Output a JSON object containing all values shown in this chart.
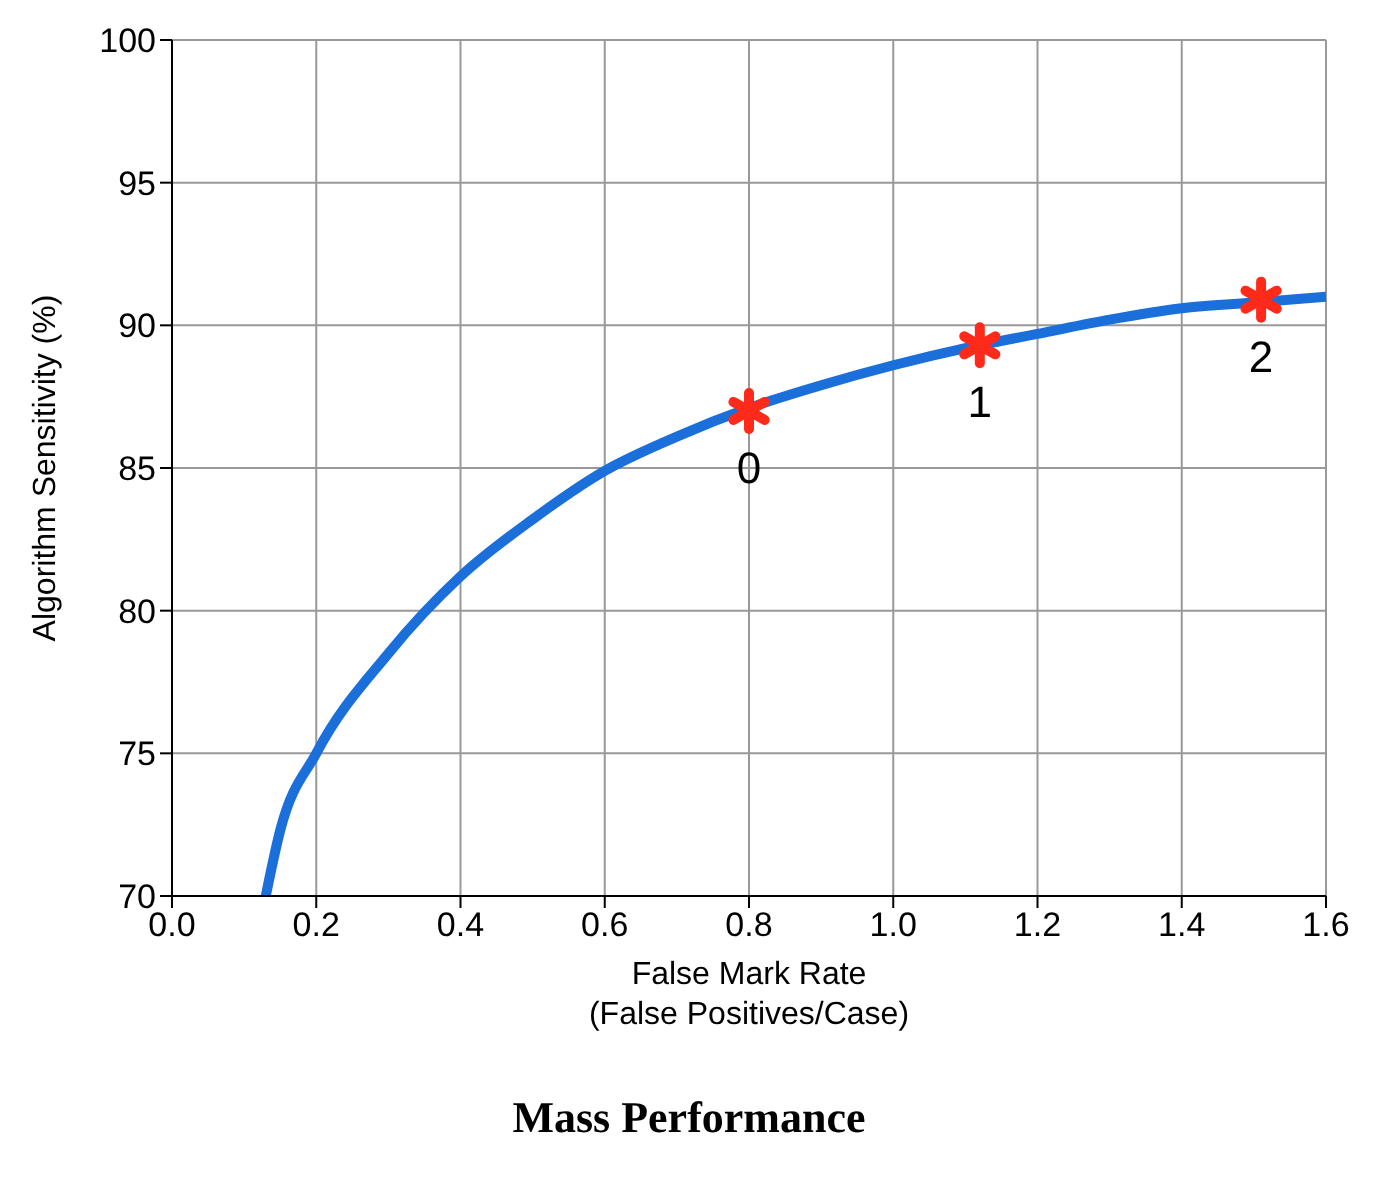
{
  "chart_data": {
    "type": "line",
    "title": "Mass Performance",
    "xlabel": "False Mark Rate\n(False Positives/Case)",
    "ylabel": "Algorithm Sensitivity (%)",
    "xlim": [
      0,
      1.6
    ],
    "xticks": [
      {
        "value": 0,
        "label": "0.0"
      },
      0.2,
      0.4,
      0.6,
      0.8,
      {
        "value": 1,
        "label": "1.0"
      },
      1.2,
      1.4,
      1.6
    ],
    "ylim": [
      70,
      100
    ],
    "yticks": [
      70,
      75,
      80,
      85,
      90,
      95,
      100
    ],
    "grid": true,
    "legend": false,
    "annotations": [
      {
        "text": "0",
        "x": 0.8,
        "y": 87
      },
      {
        "text": "1",
        "x": 1.12,
        "y": 89.3
      },
      {
        "text": "2",
        "x": 1.51,
        "y": 90.9
      }
    ],
    "series": [
      {
        "color": "#1a6fdb",
        "marker": "none",
        "line_style": "solid",
        "x": [
          0.13,
          0.15,
          0.2,
          0.3,
          0.4,
          0.5,
          0.6,
          0.7,
          0.8,
          0.9,
          1.0,
          1.1,
          1.2,
          1.3,
          1.4,
          1.5,
          1.6
        ],
        "values": [
          70,
          72.3,
          75,
          78.5,
          81.2,
          83.2,
          84.9,
          86.1,
          87.1,
          87.9,
          88.6,
          89.2,
          89.7,
          90.2,
          90.6,
          90.8,
          91
        ]
      },
      {
        "type": "scatter",
        "color": "#ff2a1a",
        "marker": "cross",
        "x": [
          0.8,
          1.12,
          1.51
        ],
        "values": [
          87,
          89.3,
          90.9
        ]
      }
    ]
  }
}
